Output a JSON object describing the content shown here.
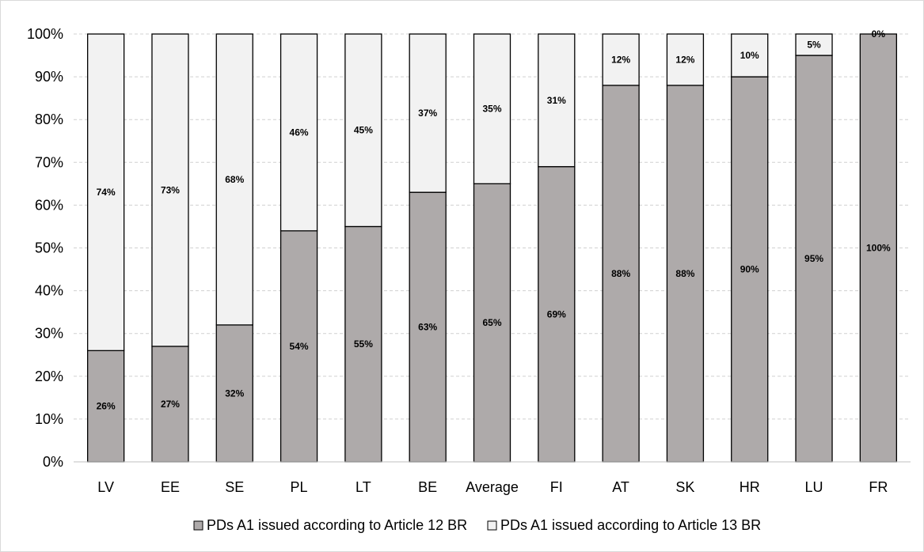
{
  "chart_data": {
    "type": "bar",
    "stacked": true,
    "categories": [
      "LV",
      "EE",
      "SE",
      "PL",
      "LT",
      "BE",
      "Average",
      "FI",
      "AT",
      "SK",
      "HR",
      "LU",
      "FR"
    ],
    "series": [
      {
        "name": "PDs A1 issued according to Article 12 BR",
        "values": [
          26,
          27,
          32,
          54,
          55,
          63,
          65,
          69,
          88,
          88,
          90,
          95,
          100
        ],
        "labels": [
          "26%",
          "27%",
          "32%",
          "54%",
          "55%",
          "63%",
          "65%",
          "69%",
          "88%",
          "88%",
          "90%",
          "95%",
          "100%"
        ],
        "color": "#aeaaaa"
      },
      {
        "name": "PDs A1 issued according to Article 13 BR",
        "values": [
          74,
          73,
          68,
          46,
          45,
          37,
          35,
          31,
          12,
          12,
          10,
          5,
          0
        ],
        "labels": [
          "74%",
          "73%",
          "68%",
          "46%",
          "45%",
          "37%",
          "35%",
          "31%",
          "12%",
          "12%",
          "10%",
          "5%",
          "0%"
        ],
        "color": "#f2f2f2"
      }
    ],
    "ylim": [
      0,
      100
    ],
    "yticks": [
      "0%",
      "10%",
      "20%",
      "30%",
      "40%",
      "50%",
      "60%",
      "70%",
      "80%",
      "90%",
      "100%"
    ],
    "grid": true,
    "legend_position": "bottom"
  }
}
